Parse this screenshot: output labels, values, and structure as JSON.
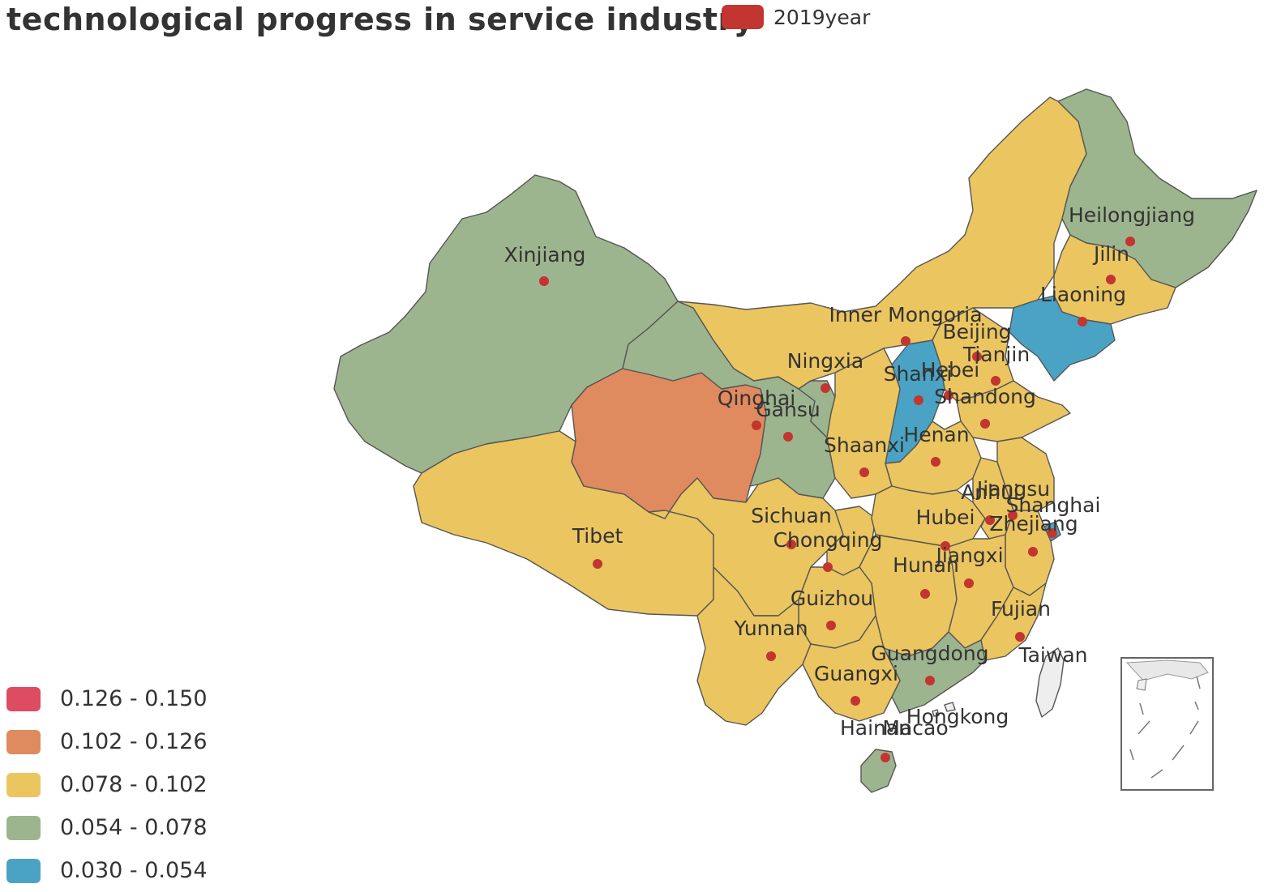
{
  "title": "technological progress in service industry",
  "series_legend": {
    "label": "2019year",
    "color": "#c23531"
  },
  "visual_map": [
    {
      "label": "0.126 - 0.150",
      "color": "#dd4c61"
    },
    {
      "label": "0.102 - 0.126",
      "color": "#e08a5f"
    },
    {
      "label": "0.078 - 0.102",
      "color": "#ebc55f"
    },
    {
      "label": "0.054 - 0.078",
      "color": "#9db58e"
    },
    {
      "label": "0.030 - 0.054",
      "color": "#4aa3c4"
    }
  ],
  "provinces": [
    {
      "name": "Xinjiang",
      "band": "0.054 - 0.078"
    },
    {
      "name": "Tibet",
      "band": "0.078 - 0.102"
    },
    {
      "name": "Qinghai",
      "band": "0.102 - 0.126"
    },
    {
      "name": "Gansu",
      "band": "0.054 - 0.078"
    },
    {
      "name": "Inner Mongoria",
      "band": "0.078 - 0.102"
    },
    {
      "name": "Heilongjiang",
      "band": "0.054 - 0.078"
    },
    {
      "name": "Jilin",
      "band": "0.078 - 0.102"
    },
    {
      "name": "Liaoning",
      "band": "0.030 - 0.054"
    },
    {
      "name": "Beijing",
      "band": "0.078 - 0.102"
    },
    {
      "name": "Tianjin",
      "band": "0.030 - 0.054"
    },
    {
      "name": "Hebei",
      "band": "0.078 - 0.102"
    },
    {
      "name": "Shanxi",
      "band": "0.030 - 0.054"
    },
    {
      "name": "Shandong",
      "band": "0.078 - 0.102"
    },
    {
      "name": "Ningxia",
      "band": "0.054 - 0.078"
    },
    {
      "name": "Shaanxi",
      "band": "0.078 - 0.102"
    },
    {
      "name": "Henan",
      "band": "0.078 - 0.102"
    },
    {
      "name": "Sichuan",
      "band": "0.078 - 0.102"
    },
    {
      "name": "Chongqing",
      "band": "0.078 - 0.102"
    },
    {
      "name": "Hubei",
      "band": "0.078 - 0.102"
    },
    {
      "name": "Anhui",
      "band": "0.078 - 0.102"
    },
    {
      "name": "Jiangsu",
      "band": "0.078 - 0.102"
    },
    {
      "name": "Shanghai",
      "band": "0.030 - 0.054"
    },
    {
      "name": "Zhejiang",
      "band": "0.078 - 0.102"
    },
    {
      "name": "Hunan",
      "band": "0.078 - 0.102"
    },
    {
      "name": "Jiangxi",
      "band": "0.078 - 0.102"
    },
    {
      "name": "Guizhou",
      "band": "0.078 - 0.102"
    },
    {
      "name": "Yunnan",
      "band": "0.078 - 0.102"
    },
    {
      "name": "Fujian",
      "band": "0.078 - 0.102"
    },
    {
      "name": "Guangdong",
      "band": "0.054 - 0.078"
    },
    {
      "name": "Guangxi",
      "band": "0.078 - 0.102"
    },
    {
      "name": "Hainan",
      "band": "0.054 - 0.078"
    },
    {
      "name": "Hongkong",
      "band": ""
    },
    {
      "name": "Macao",
      "band": ""
    },
    {
      "name": "Taiwan",
      "band": ""
    }
  ]
}
